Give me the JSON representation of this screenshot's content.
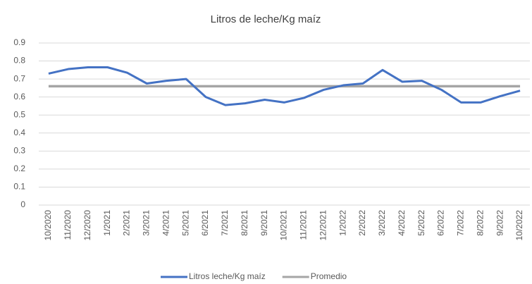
{
  "chart_data": {
    "type": "line",
    "title": "Litros de leche/Kg maíz",
    "categories": [
      "10/2020",
      "11/2020",
      "12/2020",
      "1/2021",
      "2/2021",
      "3/2021",
      "4/2021",
      "5/2021",
      "6/2021",
      "7/2021",
      "8/2021",
      "9/2021",
      "10/2021",
      "11/2021",
      "12/2021",
      "1/2022",
      "2/2022",
      "3/2022",
      "4/2022",
      "5/2022",
      "6/2022",
      "7/2022",
      "8/2022",
      "9/2022",
      "10/2022"
    ],
    "series": [
      {
        "name": "Litros leche/Kg maíz",
        "color": "#4472c4",
        "values": [
          0.73,
          0.755,
          0.765,
          0.765,
          0.735,
          0.675,
          0.69,
          0.7,
          0.6,
          0.555,
          0.565,
          0.585,
          0.57,
          0.595,
          0.64,
          0.665,
          0.675,
          0.75,
          0.685,
          0.69,
          0.64,
          0.57,
          0.57,
          0.605,
          0.635
        ]
      },
      {
        "name": "Promedio",
        "color": "#a5a5a5",
        "values": [
          0.66,
          0.66,
          0.66,
          0.66,
          0.66,
          0.66,
          0.66,
          0.66,
          0.66,
          0.66,
          0.66,
          0.66,
          0.66,
          0.66,
          0.66,
          0.66,
          0.66,
          0.66,
          0.66,
          0.66,
          0.66,
          0.66,
          0.66,
          0.66,
          0.66
        ]
      }
    ],
    "ylim": [
      0,
      0.9
    ],
    "yticks": [
      0,
      0.1,
      0.2,
      0.3,
      0.4,
      0.5,
      0.6,
      0.7,
      0.8,
      0.9
    ],
    "grid": true,
    "legend": "bottom"
  }
}
